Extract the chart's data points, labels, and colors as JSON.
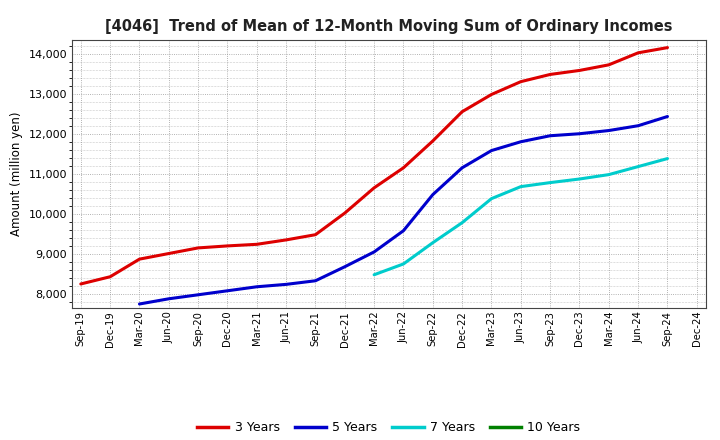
{
  "title": "[4046]  Trend of Mean of 12-Month Moving Sum of Ordinary Incomes",
  "ylabel": "Amount (million yen)",
  "background_color": "#ffffff",
  "plot_bg_color": "#ffffff",
  "grid_color": "#999999",
  "ylim": [
    7650,
    14350
  ],
  "yticks": [
    8000,
    9000,
    10000,
    11000,
    12000,
    13000,
    14000
  ],
  "x_labels": [
    "Sep-19",
    "Dec-19",
    "Mar-20",
    "Jun-20",
    "Sep-20",
    "Dec-20",
    "Mar-21",
    "Jun-21",
    "Sep-21",
    "Dec-21",
    "Mar-22",
    "Jun-22",
    "Sep-22",
    "Dec-22",
    "Mar-23",
    "Jun-23",
    "Sep-23",
    "Dec-23",
    "Mar-24",
    "Jun-24",
    "Sep-24",
    "Dec-24"
  ],
  "series": {
    "3 Years": {
      "color": "#dd0000",
      "data_x": [
        0,
        1,
        2,
        3,
        4,
        5,
        6,
        7,
        8,
        9,
        10,
        11,
        12,
        13,
        14,
        15,
        16,
        17,
        18,
        19,
        20
      ],
      "data_y": [
        8250,
        8430,
        8870,
        9010,
        9150,
        9200,
        9240,
        9350,
        9480,
        10020,
        10650,
        11150,
        11820,
        12550,
        12980,
        13300,
        13480,
        13580,
        13720,
        14020,
        14150
      ]
    },
    "5 Years": {
      "color": "#0000cc",
      "data_x": [
        2,
        3,
        4,
        5,
        6,
        7,
        8,
        9,
        10,
        11,
        12,
        13,
        14,
        15,
        16,
        17,
        18,
        19,
        20
      ],
      "data_y": [
        7750,
        7880,
        7980,
        8080,
        8180,
        8240,
        8330,
        8680,
        9050,
        9580,
        10480,
        11150,
        11580,
        11800,
        11950,
        12000,
        12080,
        12200,
        12430
      ]
    },
    "7 Years": {
      "color": "#00cccc",
      "data_x": [
        10,
        11,
        12,
        13,
        14,
        15,
        16,
        17,
        18,
        19,
        20
      ],
      "data_y": [
        8480,
        8750,
        9280,
        9780,
        10380,
        10680,
        10780,
        10870,
        10980,
        11180,
        11380
      ]
    },
    "10 Years": {
      "color": "#008000",
      "data_x": [],
      "data_y": []
    }
  },
  "legend_labels": [
    "3 Years",
    "5 Years",
    "7 Years",
    "10 Years"
  ],
  "legend_colors": [
    "#dd0000",
    "#0000cc",
    "#00cccc",
    "#008000"
  ]
}
